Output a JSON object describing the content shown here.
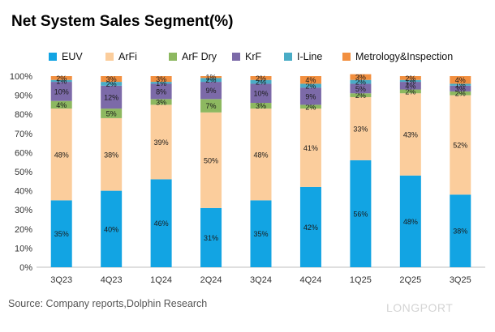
{
  "source": "Source: Company reports,Dolphin Research",
  "watermark": "LONGPORT",
  "colors": {
    "EUV": "#12a4e3",
    "ArFi": "#fbcd9c",
    "ArF Dry": "#8db860",
    "KrF": "#7c6aa8",
    "I-Line": "#4aacc6",
    "Metrology&Inspection": "#f28f3f"
  },
  "chart_data": {
    "type": "bar",
    "stacked": true,
    "title": "Net System Sales Segment(%)",
    "xlabel": "",
    "ylabel": "",
    "ylim": [
      0,
      100
    ],
    "y_ticks": [
      "0%",
      "10%",
      "20%",
      "30%",
      "40%",
      "50%",
      "60%",
      "70%",
      "80%",
      "90%",
      "100%"
    ],
    "legend_position": "top",
    "grid": false,
    "categories": [
      "3Q23",
      "4Q23",
      "1Q24",
      "2Q24",
      "3Q24",
      "4Q24",
      "1Q25",
      "2Q25",
      "3Q25"
    ],
    "series": [
      {
        "name": "EUV",
        "values": [
          35,
          40,
          46,
          31,
          35,
          42,
          56,
          48,
          38
        ],
        "labels": [
          "35%",
          "40%",
          "46%",
          "31%",
          "35%",
          "42%",
          "56%",
          "48%",
          "38%"
        ]
      },
      {
        "name": "ArFi",
        "values": [
          48,
          38,
          39,
          50,
          48,
          41,
          33,
          43,
          52
        ],
        "labels": [
          "48%",
          "38%",
          "39%",
          "50%",
          "48%",
          "41%",
          "33%",
          "43%",
          "52%"
        ]
      },
      {
        "name": "ArF Dry",
        "values": [
          4,
          5,
          3,
          7,
          3,
          2,
          2,
          2,
          2
        ],
        "labels": [
          "4%",
          "5%",
          "3%",
          "7%",
          "3%",
          "2%",
          "2%",
          "2%",
          "2%"
        ]
      },
      {
        "name": "KrF",
        "values": [
          10,
          12,
          8,
          9,
          10,
          9,
          5,
          4,
          3
        ],
        "labels": [
          "10%",
          "12%",
          "8%",
          "9%",
          "10%",
          "9%",
          "5%",
          "4%",
          "3%"
        ]
      },
      {
        "name": "I-Line",
        "values": [
          1,
          2,
          1,
          2,
          2,
          2,
          2,
          1,
          1
        ],
        "labels": [
          "1%",
          "2%",
          "1%",
          "2%",
          "2%",
          "2%",
          "2%",
          "1%",
          "1%"
        ]
      },
      {
        "name": "Metrology&Inspection",
        "values": [
          2,
          3,
          3,
          1,
          2,
          4,
          3,
          2,
          4
        ],
        "labels": [
          "2%",
          "3%",
          "3%",
          "1%",
          "2%",
          "4%",
          "3%",
          "2%",
          "4%"
        ]
      }
    ]
  }
}
